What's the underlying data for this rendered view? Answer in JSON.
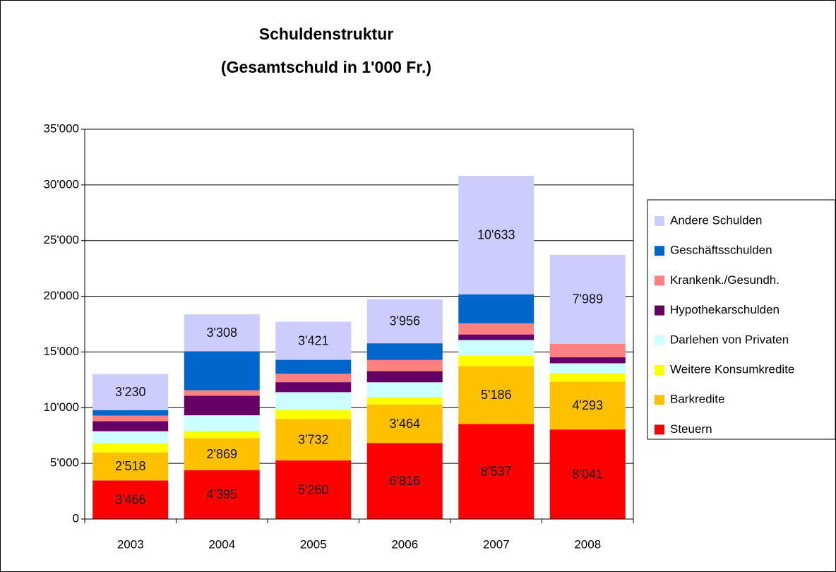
{
  "chart_data": {
    "type": "stacked_bar",
    "title": "Schuldenstruktur",
    "subtitle": "(Gesamtschuld in 1'000 Fr.)",
    "categories": [
      "2003",
      "2004",
      "2005",
      "2006",
      "2007",
      "2008"
    ],
    "series": [
      {
        "name": "Steuern",
        "color": "#ff0000",
        "values": [
          3466,
          4395,
          5260,
          6816,
          8537,
          8041
        ],
        "value_labels": [
          "3'466",
          "4'395",
          "5'260",
          "6'816",
          "8'537",
          "8'041"
        ]
      },
      {
        "name": "Barkredite",
        "color": "#ffc000",
        "values": [
          2518,
          2869,
          3732,
          3464,
          5186,
          4293
        ],
        "value_labels": [
          "2'518",
          "2'869",
          "3'732",
          "3'464",
          "5'186",
          "4'293"
        ]
      },
      {
        "name": "Weitere Konsumkredite",
        "color": "#ffff00",
        "values": [
          800,
          650,
          800,
          650,
          950,
          750
        ]
      },
      {
        "name": "Darlehen von Privaten",
        "color": "#ccffff",
        "values": [
          1100,
          1400,
          1600,
          1350,
          1400,
          900
        ]
      },
      {
        "name": "Hypothekarschulden",
        "color": "#660066",
        "values": [
          900,
          1750,
          900,
          1000,
          500,
          550
        ]
      },
      {
        "name": "Krankenk./Gesundh.",
        "color": "#ff8080",
        "values": [
          500,
          500,
          750,
          1000,
          1000,
          1200
        ]
      },
      {
        "name": "Geschäftsschulden",
        "color": "#0066cc",
        "values": [
          500,
          3500,
          1250,
          1500,
          2600,
          0
        ]
      },
      {
        "name": "Andere Schulden",
        "color": "#ccccff",
        "values": [
          3230,
          3308,
          3421,
          3956,
          10633,
          7989
        ],
        "value_labels": [
          "3'230",
          "3'308",
          "3'421",
          "3'956",
          "10'633",
          "7'989"
        ]
      }
    ],
    "ylim": [
      0,
      35000
    ],
    "yticks": [
      0,
      {
        "value": 5000,
        "label": "5'000"
      },
      {
        "value": 10000,
        "label": "10'000"
      },
      {
        "value": 15000,
        "label": "15'000"
      },
      {
        "value": 20000,
        "label": "20'000"
      },
      {
        "value": 25000,
        "label": "25'000"
      },
      {
        "value": 30000,
        "label": "30'000"
      },
      {
        "value": 35000,
        "label": "35'000"
      }
    ],
    "grid": true,
    "legend": "right"
  }
}
